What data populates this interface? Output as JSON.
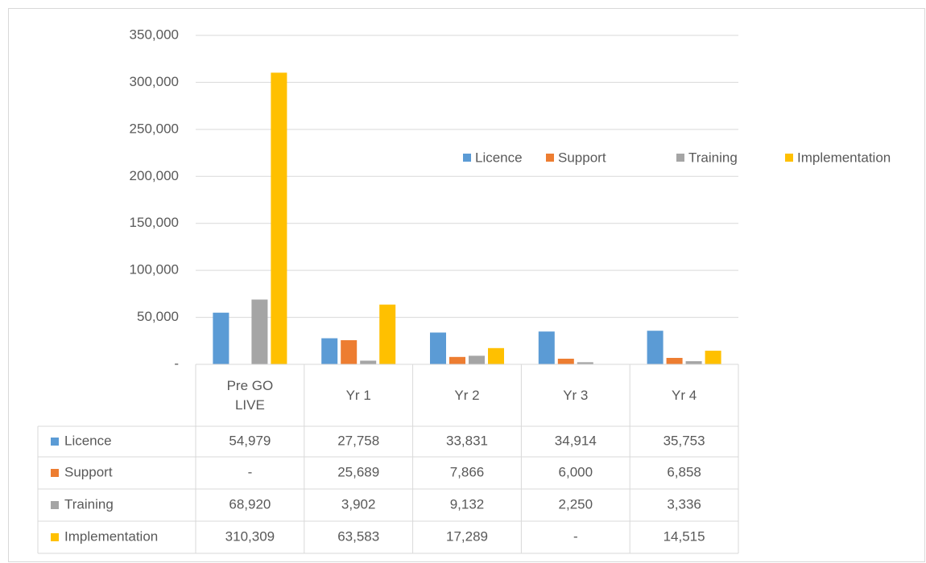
{
  "chart_data": {
    "type": "bar",
    "categories": [
      "Pre GO LIVE",
      "Yr 1",
      "Yr 2",
      "Yr 3",
      "Yr 4"
    ],
    "series": [
      {
        "name": "Licence",
        "color": "#5b9bd5",
        "values": [
          54979,
          27758,
          33831,
          34914,
          35753
        ],
        "value_labels": [
          "54,979",
          "27,758",
          "33,831",
          "34,914",
          "35,753"
        ]
      },
      {
        "name": "Support",
        "color": "#ed7d31",
        "values": [
          0,
          25689,
          7866,
          6000,
          6858
        ],
        "value_labels": [
          "-",
          "25,689",
          "7,866",
          "6,000",
          "6,858"
        ]
      },
      {
        "name": "Training",
        "color": "#a5a5a5",
        "values": [
          68920,
          3902,
          9132,
          2250,
          3336
        ],
        "value_labels": [
          "68,920",
          "3,902",
          "9,132",
          "2,250",
          "3,336"
        ]
      },
      {
        "name": "Implementation",
        "color": "#ffc000",
        "values": [
          310309,
          63583,
          17289,
          0,
          14515
        ],
        "value_labels": [
          "310,309",
          "63,583",
          "17,289",
          "-",
          "14,515"
        ]
      }
    ],
    "ylim": [
      0,
      350000
    ],
    "yticks": [
      {
        "value": 0,
        "label": "-"
      },
      {
        "value": 50000,
        "label": "50,000"
      },
      {
        "value": 100000,
        "label": "100,000"
      },
      {
        "value": 150000,
        "label": "150,000"
      },
      {
        "value": 200000,
        "label": "200,000"
      },
      {
        "value": 250000,
        "label": "250,000"
      },
      {
        "value": 300000,
        "label": "300,000"
      },
      {
        "value": 350000,
        "label": "350,000"
      }
    ],
    "grid": true
  }
}
